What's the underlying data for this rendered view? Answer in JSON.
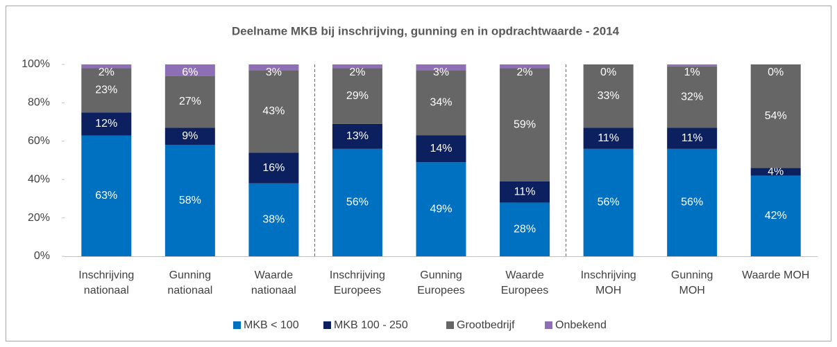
{
  "chart_data": {
    "type": "stacked_bar",
    "title": "Deelname MKB bij inschrijving, gunning en in opdrachtwaarde - 2014",
    "categories": [
      "Inschrijving\nnationaal",
      "Gunning\nnationaal",
      "Waarde\nnationaal",
      "Inschrijving\nEuropees",
      "Gunning\nEuropees",
      "Waarde\nEuropees",
      "Inschrijving\nMOH",
      "Gunning\nMOH",
      "Waarde MOH"
    ],
    "series": [
      {
        "name": "MKB < 100",
        "color": "#0070c0",
        "values": [
          63,
          58,
          38,
          56,
          49,
          28,
          56,
          56,
          42
        ],
        "value_labels": [
          "63%",
          "58%",
          "38%",
          "56%",
          "49%",
          "28%",
          "56%",
          "56%",
          "42%"
        ]
      },
      {
        "name": "MKB 100 - 250",
        "color": "#0c1f5e",
        "values": [
          12,
          9,
          16,
          13,
          14,
          11,
          11,
          11,
          4
        ],
        "value_labels": [
          "12%",
          "9%",
          "16%",
          "13%",
          "14%",
          "11%",
          "11%",
          "11%",
          "4%"
        ]
      },
      {
        "name": "Grootbedrijf",
        "color": "#666666",
        "values": [
          23,
          27,
          43,
          29,
          34,
          59,
          33,
          32,
          54
        ],
        "value_labels": [
          "23%",
          "27%",
          "43%",
          "29%",
          "34%",
          "59%",
          "33%",
          "32%",
          "54%"
        ]
      },
      {
        "name": "Onbekend",
        "color": "#8e6fb5",
        "values": [
          2,
          6,
          3,
          2,
          3,
          2,
          0,
          1,
          0
        ],
        "value_labels": [
          "2%",
          "6%",
          "3%",
          "2%",
          "3%",
          "2%",
          "0%",
          "1%",
          "0%"
        ]
      }
    ],
    "ylim": [
      0,
      100
    ],
    "yticks": [
      {
        "value": 0,
        "label": "0%"
      },
      {
        "value": 20,
        "label": "20%"
      },
      {
        "value": 40,
        "label": "40%"
      },
      {
        "value": 60,
        "label": "60%"
      },
      {
        "value": 80,
        "label": "80%"
      },
      {
        "value": 100,
        "label": "100%"
      }
    ],
    "legend": "bottom"
  }
}
